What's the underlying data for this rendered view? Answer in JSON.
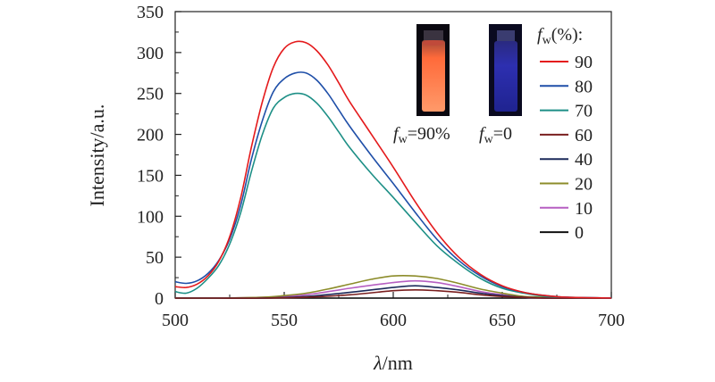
{
  "chart_data": {
    "type": "line",
    "title": "",
    "xlabel_symbol": "λ",
    "xlabel_unit": "/nm",
    "ylabel": "Intensity/a.u.",
    "xlim": [
      500,
      700
    ],
    "ylim": [
      0,
      350
    ],
    "x_ticks": [
      500,
      550,
      600,
      650,
      700
    ],
    "y_ticks": [
      0,
      50,
      100,
      150,
      200,
      250,
      300,
      350
    ],
    "legend_title": {
      "symbol": "f",
      "sub": "w",
      "suffix": "(%):"
    },
    "legend_position": "top-right",
    "series": [
      {
        "name": "90",
        "color": "#e41a1c",
        "x": [
          500,
          505,
          510,
          515,
          520,
          525,
          530,
          535,
          540,
          545,
          550,
          555,
          560,
          565,
          570,
          575,
          580,
          590,
          600,
          610,
          620,
          630,
          640,
          650,
          660,
          670,
          680,
          700
        ],
        "values": [
          14,
          13,
          17,
          27,
          45,
          75,
          122,
          185,
          240,
          282,
          305,
          313,
          312,
          302,
          285,
          263,
          240,
          200,
          160,
          118,
          80,
          50,
          29,
          15,
          7,
          3,
          1,
          0
        ]
      },
      {
        "name": "80",
        "color": "#1f4fa8",
        "x": [
          500,
          505,
          510,
          515,
          520,
          525,
          530,
          535,
          540,
          545,
          550,
          555,
          560,
          565,
          570,
          575,
          580,
          590,
          600,
          610,
          620,
          630,
          640,
          650,
          660,
          670,
          680,
          700
        ],
        "values": [
          20,
          18,
          21,
          30,
          46,
          72,
          113,
          170,
          217,
          252,
          268,
          275,
          275,
          266,
          250,
          230,
          210,
          174,
          140,
          105,
          72,
          46,
          27,
          14,
          7,
          3,
          1,
          0
        ]
      },
      {
        "name": "70",
        "color": "#1d8f86",
        "x": [
          500,
          505,
          510,
          515,
          520,
          525,
          530,
          535,
          540,
          545,
          550,
          555,
          560,
          565,
          570,
          575,
          580,
          590,
          600,
          610,
          620,
          630,
          640,
          650,
          660,
          670,
          680,
          700
        ],
        "values": [
          8,
          6,
          12,
          24,
          40,
          66,
          104,
          155,
          200,
          232,
          245,
          250,
          248,
          238,
          222,
          203,
          184,
          152,
          123,
          93,
          64,
          42,
          24,
          12,
          6,
          2,
          1,
          0
        ]
      },
      {
        "name": "60",
        "color": "#7a1f1f",
        "x": [
          500,
          520,
          540,
          560,
          580,
          600,
          610,
          620,
          630,
          640,
          650,
          660,
          670,
          680,
          700
        ],
        "values": [
          0,
          0,
          0,
          1,
          4,
          9,
          10,
          9,
          7,
          4,
          2,
          1,
          0,
          0,
          0
        ]
      },
      {
        "name": "40",
        "color": "#1c2a5a",
        "x": [
          500,
          520,
          540,
          560,
          580,
          600,
          610,
          620,
          630,
          640,
          650,
          660,
          670,
          680,
          700
        ],
        "values": [
          0,
          0,
          0,
          2,
          7,
          13,
          15,
          13,
          10,
          6,
          3,
          1,
          0,
          0,
          0
        ]
      },
      {
        "name": "20",
        "color": "#8c8c2a",
        "x": [
          500,
          520,
          540,
          550,
          560,
          570,
          580,
          590,
          600,
          610,
          620,
          630,
          640,
          650,
          660,
          670,
          680,
          700
        ],
        "values": [
          0,
          0,
          1,
          3,
          6,
          11,
          17,
          23,
          27,
          27,
          24,
          18,
          11,
          6,
          2,
          1,
          0,
          0
        ]
      },
      {
        "name": "10",
        "color": "#b65fc2",
        "x": [
          500,
          520,
          540,
          560,
          580,
          600,
          610,
          620,
          630,
          640,
          650,
          660,
          670,
          680,
          700
        ],
        "values": [
          0,
          0,
          1,
          4,
          12,
          19,
          21,
          19,
          14,
          8,
          4,
          1,
          0,
          0,
          0
        ]
      },
      {
        "name": "0",
        "color": "#111111",
        "x": [
          500,
          520,
          540,
          560,
          580,
          600,
          620,
          640,
          660,
          680,
          700
        ],
        "values": [
          0,
          0,
          0,
          0,
          0,
          0,
          0,
          0,
          0,
          0,
          0
        ]
      }
    ],
    "inset": {
      "type": "photo-vials",
      "labels": [
        {
          "symbol": "f",
          "sub": "w",
          "text": "=90%"
        },
        {
          "symbol": "f",
          "sub": "w",
          "text": "=0"
        }
      ],
      "vial_colors": [
        "#ff7a4a",
        "#2b2fa0"
      ]
    }
  }
}
